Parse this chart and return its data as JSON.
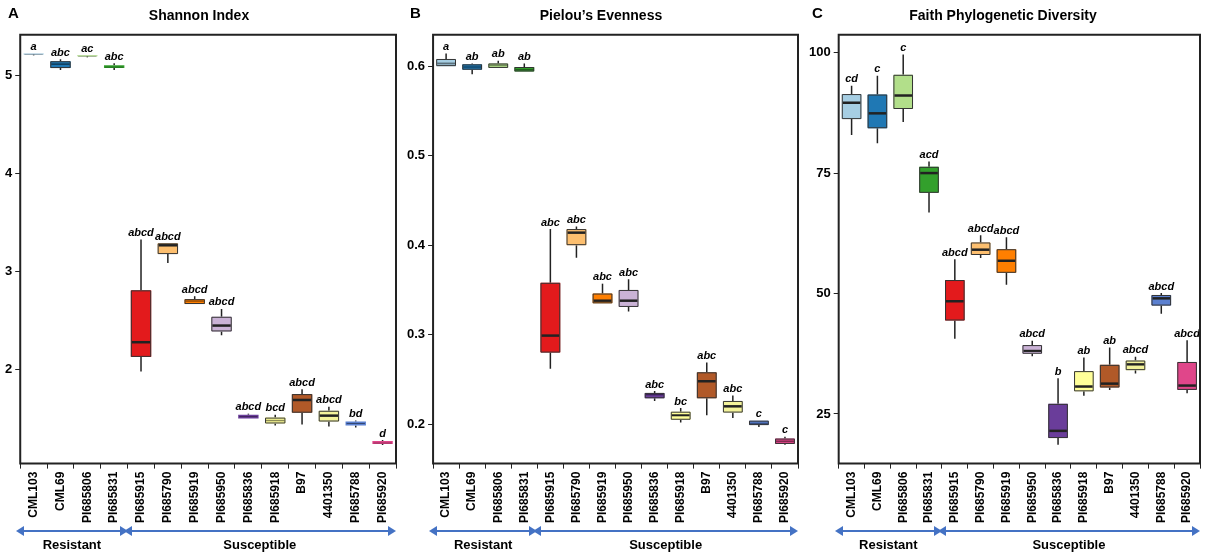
{
  "chart_data": [
    {
      "type": "box",
      "title": "Shannon Index",
      "categories": [
        "CML103",
        "CML69",
        "PI685806",
        "PI685831",
        "PI685915",
        "PI685790",
        "PI685919",
        "PI685950",
        "PI685836",
        "PI685918",
        "B97",
        "4401350",
        "PI685788",
        "PI685920"
      ],
      "colors": [
        "#a6cee3",
        "#1f78b4",
        "#b2df8a",
        "#33a02c",
        "#e31a1c",
        "#fdbf6f",
        "#ff7f00",
        "#cab2d6",
        "#6a3d9a",
        "#ffff99",
        "#b15928",
        "#f3f39a",
        "#5b80d0",
        "#e0468a"
      ],
      "boxes": [
        {
          "low": 5.21,
          "q1": 5.22,
          "median": 5.22,
          "q3": 5.23,
          "high": 5.23
        },
        {
          "low": 5.06,
          "q1": 5.08,
          "median": 5.12,
          "q3": 5.15,
          "high": 5.17
        },
        {
          "low": 5.19,
          "q1": 5.2,
          "median": 5.2,
          "q3": 5.21,
          "high": 5.21
        },
        {
          "low": 5.06,
          "q1": 5.08,
          "median": 5.09,
          "q3": 5.11,
          "high": 5.13
        },
        {
          "low": 1.98,
          "q1": 2.13,
          "median": 2.28,
          "q3": 2.81,
          "high": 3.33
        },
        {
          "low": 3.09,
          "q1": 3.18,
          "median": 3.27,
          "q3": 3.29,
          "high": 3.29
        },
        {
          "low": 2.67,
          "q1": 2.67,
          "median": 2.7,
          "q3": 2.72,
          "high": 2.75
        },
        {
          "low": 2.35,
          "q1": 2.39,
          "median": 2.45,
          "q3": 2.54,
          "high": 2.62
        },
        {
          "low": 1.5,
          "q1": 1.5,
          "median": 1.52,
          "q3": 1.54,
          "high": 1.55
        },
        {
          "low": 1.43,
          "q1": 1.45,
          "median": 1.48,
          "q3": 1.51,
          "high": 1.54
        },
        {
          "low": 1.44,
          "q1": 1.56,
          "median": 1.69,
          "q3": 1.75,
          "high": 1.8
        },
        {
          "low": 1.42,
          "q1": 1.47,
          "median": 1.53,
          "q3": 1.58,
          "high": 1.62
        },
        {
          "low": 1.41,
          "q1": 1.43,
          "median": 1.45,
          "q3": 1.47,
          "high": 1.48
        },
        {
          "low": 1.23,
          "q1": 1.24,
          "median": 1.25,
          "q3": 1.27,
          "high": 1.28
        }
      ],
      "ylim": [
        1.04,
        5.42
      ],
      "yticks": [
        2,
        3,
        4,
        5
      ],
      "annotations": [
        "A",
        "Resistant",
        "Susceptible",
        {
          "text": "a",
          "x": "CML103",
          "y": 5.23
        },
        {
          "text": "abc",
          "x": "CML69",
          "y": 5.17
        },
        {
          "text": "ac",
          "x": "PI685806",
          "y": 5.21
        },
        {
          "text": "abc",
          "x": "PI685831",
          "y": 5.13
        },
        {
          "text": "abcd",
          "x": "PI685915",
          "y": 3.33
        },
        {
          "text": "abcd",
          "x": "PI685790",
          "y": 3.29
        },
        {
          "text": "abcd",
          "x": "PI685919",
          "y": 2.75
        },
        {
          "text": "abcd",
          "x": "PI685950",
          "y": 2.62
        },
        {
          "text": "abcd",
          "x": "PI685836",
          "y": 1.55
        },
        {
          "text": "bcd",
          "x": "PI685918",
          "y": 1.54
        },
        {
          "text": "abcd",
          "x": "B97",
          "y": 1.8
        },
        {
          "text": "abcd",
          "x": "4401350",
          "y": 1.62
        },
        {
          "text": "bd",
          "x": "PI685788",
          "y": 1.48
        },
        {
          "text": "d",
          "x": "PI685920",
          "y": 1.28
        }
      ]
    },
    {
      "type": "box",
      "title": "Pielou’s Evenness",
      "categories": [
        "CML103",
        "CML69",
        "PI685806",
        "PI685831",
        "PI685915",
        "PI685790",
        "PI685919",
        "PI685950",
        "PI685836",
        "PI685918",
        "B97",
        "4401350",
        "PI685788",
        "PI685920"
      ],
      "colors": [
        "#a6cee3",
        "#1f78b4",
        "#b2df8a",
        "#33a02c",
        "#e31a1c",
        "#fdbf6f",
        "#ff7f00",
        "#cab2d6",
        "#6a3d9a",
        "#ffff99",
        "#b15928",
        "#f3f39a",
        "#5b80d0",
        "#e0468a"
      ],
      "boxes": [
        {
          "low": 0.6,
          "q1": 0.6,
          "median": 0.603,
          "q3": 0.608,
          "high": 0.614
        },
        {
          "low": 0.591,
          "q1": 0.596,
          "median": 0.599,
          "q3": 0.602,
          "high": 0.603
        },
        {
          "low": 0.598,
          "q1": 0.598,
          "median": 0.601,
          "q3": 0.603,
          "high": 0.606
        },
        {
          "low": 0.594,
          "q1": 0.594,
          "median": 0.596,
          "q3": 0.599,
          "high": 0.603
        },
        {
          "low": 0.262,
          "q1": 0.28,
          "median": 0.299,
          "q3": 0.358,
          "high": 0.418
        },
        {
          "low": 0.386,
          "q1": 0.4,
          "median": 0.414,
          "q3": 0.418,
          "high": 0.421
        },
        {
          "low": 0.335,
          "q1": 0.335,
          "median": 0.338,
          "q3": 0.346,
          "high": 0.357
        },
        {
          "low": 0.326,
          "q1": 0.331,
          "median": 0.338,
          "q3": 0.35,
          "high": 0.362
        },
        {
          "low": 0.226,
          "q1": 0.229,
          "median": 0.233,
          "q3": 0.235,
          "high": 0.237
        },
        {
          "low": 0.202,
          "q1": 0.205,
          "median": 0.21,
          "q3": 0.214,
          "high": 0.218
        },
        {
          "low": 0.21,
          "q1": 0.229,
          "median": 0.248,
          "q3": 0.258,
          "high": 0.269
        },
        {
          "low": 0.207,
          "q1": 0.213,
          "median": 0.22,
          "q3": 0.226,
          "high": 0.232
        },
        {
          "low": 0.197,
          "q1": 0.199,
          "median": 0.201,
          "q3": 0.204,
          "high": 0.204
        },
        {
          "low": 0.177,
          "q1": 0.178,
          "median": 0.181,
          "q3": 0.184,
          "high": 0.186
        }
      ],
      "ylim": [
        0.156,
        0.635
      ],
      "yticks": [
        0.2,
        0.3,
        0.4,
        0.5,
        0.6
      ],
      "annotations": [
        "B",
        "Resistant",
        "Susceptible",
        {
          "text": "a",
          "x": "CML103",
          "y": 0.614
        },
        {
          "text": "ab",
          "x": "CML69",
          "y": 0.603
        },
        {
          "text": "ab",
          "x": "PI685806",
          "y": 0.606
        },
        {
          "text": "ab",
          "x": "PI685831",
          "y": 0.603
        },
        {
          "text": "abc",
          "x": "PI685915",
          "y": 0.418
        },
        {
          "text": "abc",
          "x": "PI685790",
          "y": 0.421
        },
        {
          "text": "abc",
          "x": "PI685919",
          "y": 0.357
        },
        {
          "text": "abc",
          "x": "PI685950",
          "y": 0.362
        },
        {
          "text": "abc",
          "x": "PI685836",
          "y": 0.237
        },
        {
          "text": "bc",
          "x": "PI685918",
          "y": 0.218
        },
        {
          "text": "abc",
          "x": "B97",
          "y": 0.269
        },
        {
          "text": "abc",
          "x": "4401350",
          "y": 0.232
        },
        {
          "text": "c",
          "x": "PI685788",
          "y": 0.204
        },
        {
          "text": "c",
          "x": "PI685920",
          "y": 0.186
        }
      ]
    },
    {
      "type": "box",
      "title": "Faith Phylogenetic Diversity",
      "categories": [
        "CML103",
        "CML69",
        "PI685806",
        "PI685831",
        "PI685915",
        "PI685790",
        "PI685919",
        "PI685950",
        "PI685836",
        "PI685918",
        "B97",
        "4401350",
        "PI685788",
        "PI685920"
      ],
      "colors": [
        "#a6cee3",
        "#1f78b4",
        "#b2df8a",
        "#33a02c",
        "#e31a1c",
        "#fdbf6f",
        "#ff7f00",
        "#cab2d6",
        "#6a3d9a",
        "#ffff99",
        "#b15928",
        "#f3f39a",
        "#5b80d0",
        "#e0468a"
      ],
      "boxes": [
        {
          "low": 82.9,
          "q1": 86.2,
          "median": 89.6,
          "q3": 91.4,
          "high": 93.1
        },
        {
          "low": 81.2,
          "q1": 84.3,
          "median": 87.4,
          "q3": 91.3,
          "high": 95.2
        },
        {
          "low": 85.6,
          "q1": 88.3,
          "median": 91.1,
          "q3": 95.4,
          "high": 99.6
        },
        {
          "low": 66.8,
          "q1": 70.9,
          "median": 75.0,
          "q3": 76.3,
          "high": 77.4
        },
        {
          "low": 40.6,
          "q1": 44.4,
          "median": 48.4,
          "q3": 52.8,
          "high": 57.1
        },
        {
          "low": 57.4,
          "q1": 58.0,
          "median": 59.1,
          "q3": 60.6,
          "high": 62.1
        },
        {
          "low": 51.8,
          "q1": 54.3,
          "median": 56.8,
          "q3": 59.2,
          "high": 61.7
        },
        {
          "low": 37.0,
          "q1": 37.5,
          "median": 38.1,
          "q3": 39.3,
          "high": 40.2
        },
        {
          "low": 18.6,
          "q1": 20.0,
          "median": 21.5,
          "q3": 27.1,
          "high": 32.4
        },
        {
          "low": 28.8,
          "q1": 29.7,
          "median": 30.7,
          "q3": 33.9,
          "high": 36.7
        },
        {
          "low": 30.0,
          "q1": 30.5,
          "median": 31.3,
          "q3": 35.2,
          "high": 38.8
        },
        {
          "low": 33.4,
          "q1": 34.1,
          "median": 35.3,
          "q3": 36.1,
          "high": 36.9
        },
        {
          "low": 45.8,
          "q1": 47.5,
          "median": 49.0,
          "q3": 49.7,
          "high": 50.1
        },
        {
          "low": 29.3,
          "q1": 30.0,
          "median": 30.9,
          "q3": 35.8,
          "high": 40.3
        }
      ],
      "ylim": [
        14.7,
        103.7
      ],
      "yticks": [
        25,
        50,
        75,
        100
      ],
      "annotations": [
        "C",
        "Resistant",
        "Susceptible",
        {
          "text": "cd",
          "x": "CML103",
          "y": 93.1
        },
        {
          "text": "c",
          "x": "CML69",
          "y": 95.2
        },
        {
          "text": "c",
          "x": "PI685806",
          "y": 99.6
        },
        {
          "text": "acd",
          "x": "PI685831",
          "y": 77.4
        },
        {
          "text": "abcd",
          "x": "PI685915",
          "y": 57.1
        },
        {
          "text": "abcd",
          "x": "PI685790",
          "y": 62.1
        },
        {
          "text": "abcd",
          "x": "PI685919",
          "y": 61.7
        },
        {
          "text": "abcd",
          "x": "PI685950",
          "y": 40.2
        },
        {
          "text": "b",
          "x": "PI685836",
          "y": 32.4
        },
        {
          "text": "ab",
          "x": "PI685918",
          "y": 36.7
        },
        {
          "text": "ab",
          "x": "B97",
          "y": 38.8
        },
        {
          "text": "abcd",
          "x": "4401350",
          "y": 36.9
        },
        {
          "text": "abcd",
          "x": "PI685788",
          "y": 50.1
        },
        {
          "text": "abcd",
          "x": "PI685920",
          "y": 40.3
        }
      ]
    }
  ]
}
